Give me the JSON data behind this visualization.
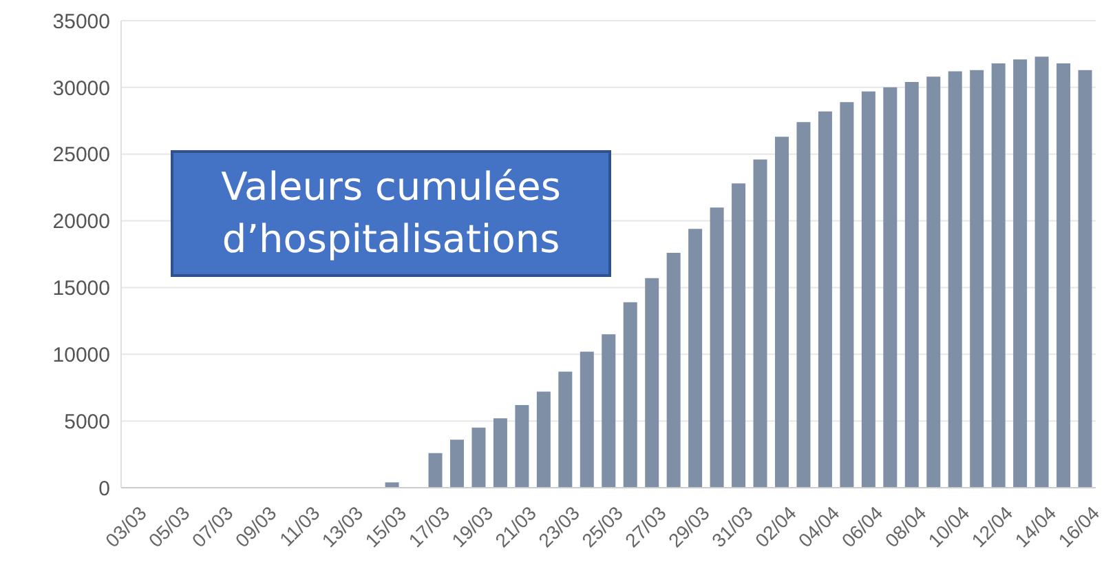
{
  "chart_data": {
    "type": "bar",
    "categories": [
      "03/03",
      null,
      "05/03",
      null,
      "07/03",
      null,
      "09/03",
      null,
      "11/03",
      null,
      "13/03",
      null,
      "15/03",
      null,
      "17/03",
      null,
      "19/03",
      null,
      "21/03",
      null,
      "23/03",
      null,
      "25/03",
      null,
      "27/03",
      null,
      "29/03",
      null,
      "31/03",
      null,
      "02/04",
      null,
      "04/04",
      null,
      "06/04",
      null,
      "08/04",
      null,
      "10/04",
      null,
      "12/04",
      null,
      "14/04",
      null,
      "16/04"
    ],
    "values": [
      0,
      0,
      0,
      0,
      0,
      0,
      0,
      0,
      0,
      0,
      0,
      0,
      400,
      0,
      2600,
      3600,
      4500,
      5200,
      6200,
      7200,
      8700,
      10200,
      11500,
      13900,
      15700,
      17600,
      19400,
      21000,
      22800,
      24600,
      26300,
      27400,
      28200,
      28900,
      29700,
      30000,
      30400,
      30800,
      31200,
      31300,
      31800,
      32100,
      32300,
      31800,
      31300
    ],
    "color": "#7f8fa6",
    "ylim": [
      0,
      35000
    ],
    "yticks": [
      0,
      5000,
      10000,
      15000,
      20000,
      25000,
      30000,
      35000
    ],
    "grid": "y",
    "annotations": [
      "Valeurs cumulées d’hospitalisations"
    ]
  }
}
